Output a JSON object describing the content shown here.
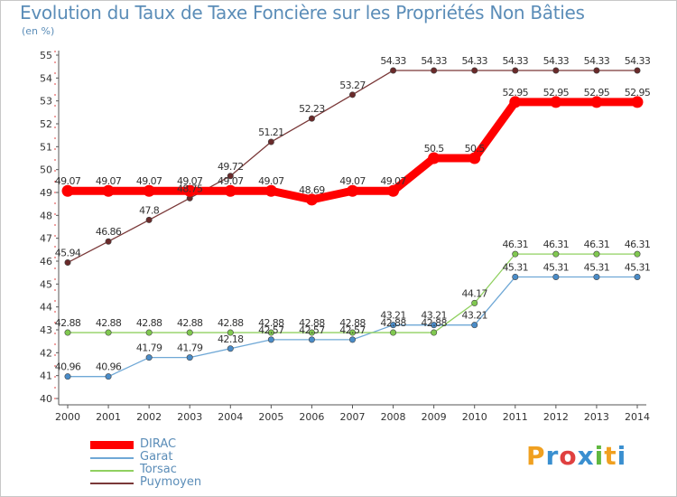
{
  "chart_data": {
    "type": "line",
    "title": "Evolution du Taux de Taxe Foncière sur les Propriétés Non Bâties",
    "ylabel": "(en %)",
    "xlabel": "",
    "ylim": [
      40,
      55
    ],
    "yticks": [
      "40",
      "41",
      "42",
      "43",
      "44",
      "45",
      "46",
      "47",
      "48",
      "49",
      "50",
      "51",
      "52",
      "53",
      "54",
      "55"
    ],
    "categories": [
      "2000",
      "2001",
      "2002",
      "2003",
      "2004",
      "2005",
      "2006",
      "2007",
      "2008",
      "2009",
      "2010",
      "2011",
      "2012",
      "2013",
      "2014"
    ],
    "series": [
      {
        "name": "DIRAC",
        "color": "#ff0000",
        "marker": "#ff0000",
        "values": [
          49.07,
          49.07,
          49.07,
          49.07,
          49.07,
          49.07,
          48.69,
          49.07,
          49.07,
          50.5,
          50.5,
          52.95,
          52.95,
          52.95,
          52.95
        ],
        "labels": [
          "49.07",
          "49.07",
          "49.07",
          "49.07",
          "49.07",
          "49.07",
          "48.69",
          "49.07",
          "49.07",
          "50.5",
          "50.5",
          "52.95",
          "52.95",
          "52.95",
          "52.95"
        ]
      },
      {
        "name": "Garat",
        "color": "#6fa8d6",
        "marker": "#4a8cc8",
        "values": [
          40.96,
          40.96,
          41.79,
          41.79,
          42.18,
          42.57,
          42.57,
          42.57,
          43.21,
          43.21,
          43.21,
          45.31,
          45.31,
          45.31,
          45.31
        ],
        "labels": [
          "40.96",
          "40.96",
          "41.79",
          "41.79",
          "42.18",
          "42.57",
          "42.57",
          "42.57",
          "43.21",
          "43.21",
          "43.21",
          "45.31",
          "45.31",
          "45.31",
          "45.31"
        ]
      },
      {
        "name": "Torsac",
        "color": "#90d060",
        "marker": "#80c850",
        "values": [
          42.88,
          42.88,
          42.88,
          42.88,
          42.88,
          42.88,
          42.88,
          42.88,
          42.88,
          42.88,
          44.17,
          46.31,
          46.31,
          46.31,
          46.31
        ],
        "labels": [
          "42.88",
          "42.88",
          "42.88",
          "42.88",
          "42.88",
          "42.88",
          "42.88",
          "42.88",
          "42.88",
          "42.88",
          "44.17",
          "46.31",
          "46.31",
          "46.31",
          "46.31"
        ]
      },
      {
        "name": "Puymoyen",
        "color": "#7a3838",
        "marker": "#6a2a2a",
        "values": [
          45.94,
          46.86,
          47.8,
          48.75,
          49.72,
          51.21,
          52.23,
          53.27,
          54.33,
          54.33,
          54.33,
          54.33,
          54.33,
          54.33,
          54.33
        ],
        "labels": [
          "45.94",
          "46.86",
          "47.8",
          "48.75",
          "49.72",
          "51.21",
          "52.23",
          "53.27",
          "54.33",
          "54.33",
          "54.33",
          "54.33",
          "54.33",
          "54.33",
          "54.33"
        ]
      }
    ],
    "legend_position": "bottom-left",
    "grid": false
  },
  "brand": {
    "letters": [
      "P",
      "r",
      "o",
      "x",
      "i",
      "t",
      "i"
    ],
    "colors": [
      "#f0a020",
      "#3a8fd0",
      "#e04040",
      "#3a8fd0",
      "#60b840",
      "#f0a020",
      "#3a8fd0"
    ]
  }
}
